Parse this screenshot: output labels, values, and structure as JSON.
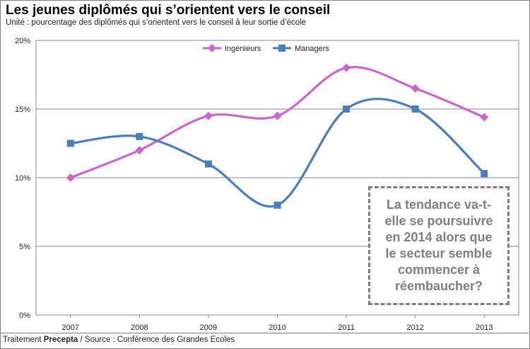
{
  "title": "Les jeunes diplômés qui s’orientent vers le conseil",
  "subtitle": "Unité : pourcentage des diplômés qui s’orientent vers le conseil à leur sortie d’école",
  "footer": {
    "prefix": "Traitement ",
    "brand": "Precepta",
    "suffix": " / Source : Conférence des Grandes Ecoles"
  },
  "annotation": "La tendance va-t-elle se poursuivre en 2014 alors que le secteur semble commencer à réembaucher?",
  "chart_data": {
    "type": "line",
    "x": [
      "2007",
      "2008",
      "2009",
      "2010",
      "2011",
      "2012",
      "2013"
    ],
    "series": [
      {
        "name": "Ingénieurs",
        "values": [
          10,
          12,
          14.5,
          14.5,
          18,
          16.5,
          14.4
        ],
        "color": "#cc66cc",
        "marker": "diamond"
      },
      {
        "name": "Managers",
        "values": [
          12.5,
          13,
          11,
          8,
          15,
          15,
          10.3
        ],
        "color": "#4a7ebb",
        "marker": "square"
      }
    ],
    "yticks": [
      "0%",
      "5%",
      "10%",
      "15%",
      "20%"
    ],
    "ylim": [
      0,
      20
    ],
    "grid": true,
    "smooth": true,
    "legend": "top-center"
  }
}
